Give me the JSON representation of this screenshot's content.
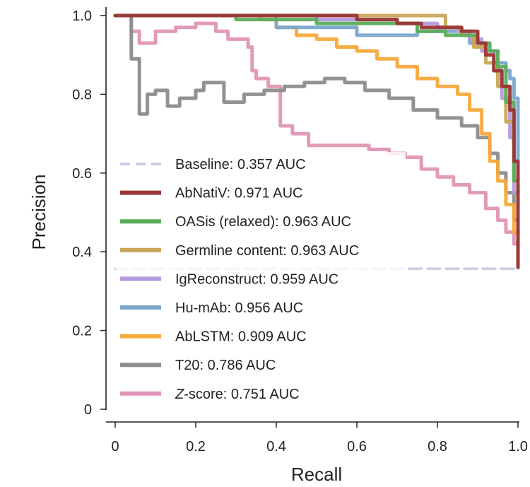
{
  "chart_data": {
    "type": "line",
    "title": "",
    "xlabel": "Recall",
    "ylabel": "Precision",
    "xlim": [
      0,
      1
    ],
    "ylim": [
      0,
      1
    ],
    "xticks": [
      "0",
      "0.2",
      "0.4",
      "0.6",
      "0.8",
      "1.0"
    ],
    "yticks": [
      "0",
      "0.2",
      "0.4",
      "0.6",
      "0.8",
      "1.0"
    ],
    "legend_position": "lower-left",
    "series": [
      {
        "name": "Z-score",
        "legend": [
          "Z",
          "-score: 0.751 AUC"
        ],
        "color": "#e195b5",
        "x": [
          0.02,
          0.04,
          0.06,
          0.1,
          0.15,
          0.2,
          0.25,
          0.28,
          0.33,
          0.34,
          0.35,
          0.38,
          0.41,
          0.44,
          0.48,
          0.52,
          0.58,
          0.63,
          0.68,
          0.72,
          0.76,
          0.8,
          0.84,
          0.88,
          0.92,
          0.95,
          0.97,
          0.99,
          1.0
        ],
        "y": [
          1.0,
          0.96,
          0.93,
          0.96,
          0.97,
          0.98,
          0.96,
          0.94,
          0.92,
          0.86,
          0.84,
          0.82,
          0.72,
          0.7,
          0.67,
          0.67,
          0.67,
          0.66,
          0.65,
          0.64,
          0.61,
          0.59,
          0.57,
          0.55,
          0.51,
          0.48,
          0.45,
          0.42,
          0.37
        ]
      },
      {
        "name": "T20",
        "legend": [
          "T20: 0.786 AUC"
        ],
        "color": "#8c8c8c",
        "x": [
          0.0,
          0.04,
          0.04,
          0.06,
          0.08,
          0.1,
          0.13,
          0.16,
          0.2,
          0.22,
          0.27,
          0.32,
          0.37,
          0.42,
          0.47,
          0.52,
          0.57,
          0.62,
          0.68,
          0.74,
          0.8,
          0.86,
          0.9,
          0.93,
          0.95,
          0.97,
          0.99,
          1.0
        ],
        "y": [
          1.0,
          1.0,
          0.89,
          0.75,
          0.8,
          0.81,
          0.77,
          0.79,
          0.81,
          0.83,
          0.78,
          0.8,
          0.81,
          0.82,
          0.83,
          0.84,
          0.83,
          0.81,
          0.79,
          0.76,
          0.74,
          0.72,
          0.69,
          0.65,
          0.6,
          0.55,
          0.48,
          0.38
        ]
      },
      {
        "name": "AbLSTM",
        "legend": [
          "AbLSTM: 0.909 AUC"
        ],
        "color": "#f7a93b",
        "x": [
          0.0,
          0.3,
          0.36,
          0.4,
          0.45,
          0.5,
          0.55,
          0.6,
          0.65,
          0.7,
          0.75,
          0.8,
          0.85,
          0.88,
          0.91,
          0.93,
          0.95,
          0.97,
          0.99,
          1.0
        ],
        "y": [
          1.0,
          1.0,
          0.99,
          0.97,
          0.95,
          0.94,
          0.92,
          0.91,
          0.89,
          0.87,
          0.84,
          0.82,
          0.8,
          0.76,
          0.7,
          0.63,
          0.58,
          0.52,
          0.45,
          0.37
        ]
      },
      {
        "name": "Hu-mAb",
        "legend": [
          "Hu-mAb: 0.956 AUC"
        ],
        "color": "#7aa6cc",
        "x": [
          0.0,
          0.4,
          0.6,
          0.75,
          0.82,
          0.88,
          0.92,
          0.95,
          0.97,
          0.98,
          0.99,
          1.0,
          1.0
        ],
        "y": [
          1.0,
          0.97,
          0.95,
          0.96,
          0.96,
          0.93,
          0.91,
          0.88,
          0.86,
          0.84,
          0.79,
          0.78,
          0.36
        ]
      },
      {
        "name": "IgReconstruct",
        "legend": [
          "IgReconstruct: 0.959 AUC"
        ],
        "color": "#b49ae0",
        "x": [
          0.0,
          0.5,
          0.7,
          0.8,
          0.85,
          0.88,
          0.91,
          0.94,
          0.96,
          0.98,
          0.99,
          1.0
        ],
        "y": [
          1.0,
          0.99,
          0.98,
          0.97,
          0.96,
          0.94,
          0.91,
          0.86,
          0.79,
          0.69,
          0.55,
          0.38
        ]
      },
      {
        "name": "Germline content",
        "legend": [
          "Germline content: 0.963 AUC"
        ],
        "color": "#c9a55a",
        "x": [
          0.0,
          0.6,
          0.78,
          0.82,
          0.86,
          0.89,
          0.92,
          0.95,
          0.97,
          0.99,
          1.0
        ],
        "y": [
          1.0,
          1.0,
          1.0,
          0.97,
          0.95,
          0.92,
          0.88,
          0.82,
          0.73,
          0.58,
          0.38
        ]
      },
      {
        "name": "OASis (relaxed)",
        "legend": [
          "OASis (relaxed): 0.963 AUC"
        ],
        "color": "#5aad5a",
        "x": [
          0.0,
          0.3,
          0.5,
          0.65,
          0.75,
          0.82,
          0.87,
          0.9,
          0.93,
          0.95,
          0.97,
          0.99,
          1.0
        ],
        "y": [
          1.0,
          0.99,
          0.98,
          0.98,
          0.96,
          0.95,
          0.95,
          0.93,
          0.91,
          0.87,
          0.78,
          0.58,
          0.37
        ]
      },
      {
        "name": "AbNatiV",
        "legend": [
          "AbNatiV: 0.971 AUC"
        ],
        "color": "#9b3535",
        "x": [
          0.0,
          0.4,
          0.6,
          0.7,
          0.76,
          0.82,
          0.86,
          0.9,
          0.92,
          0.94,
          0.96,
          0.98,
          0.99,
          1.0,
          1.0
        ],
        "y": [
          1.0,
          1.0,
          0.99,
          0.98,
          0.97,
          0.97,
          0.96,
          0.93,
          0.9,
          0.86,
          0.82,
          0.76,
          0.63,
          0.45,
          0.36
        ]
      },
      {
        "name": "Baseline",
        "legend": [
          "Baseline: 0.357 AUC"
        ],
        "color": "#c8c8e0",
        "dashed": true,
        "x": [
          0.0,
          1.0
        ],
        "y": [
          0.357,
          0.357
        ]
      }
    ]
  }
}
